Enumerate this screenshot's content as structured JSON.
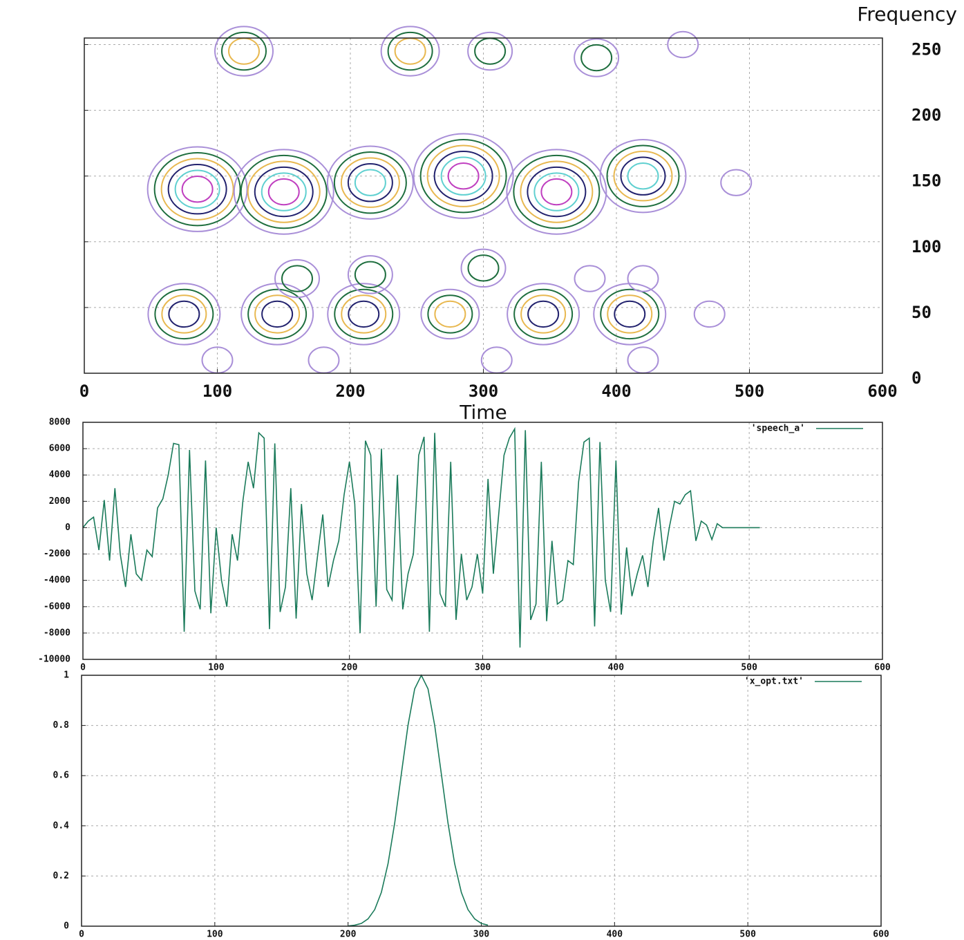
{
  "chart_data": [
    {
      "type": "contour",
      "ylabel": "Frequency",
      "xlabel": "Time",
      "x": [
        85,
        150,
        215,
        285,
        355,
        420,
        75,
        145,
        210,
        275,
        345,
        410,
        120,
        245,
        300,
        215,
        160,
        380,
        420,
        305,
        385,
        450,
        490,
        470,
        100,
        180,
        310,
        420
      ],
      "y": [
        140,
        138,
        145,
        150,
        138,
        150,
        45,
        45,
        45,
        45,
        45,
        45,
        245,
        245,
        80,
        75,
        72,
        72,
        72,
        245,
        240,
        250,
        145,
        45,
        10,
        10,
        10,
        10
      ],
      "values": [
        6,
        6,
        5,
        6,
        6,
        5,
        4,
        4,
        4,
        3,
        4,
        4,
        3,
        3,
        2,
        2,
        2,
        1,
        1,
        2,
        2,
        1,
        1,
        1,
        1,
        1,
        1,
        1
      ],
      "colors": [
        "#a98fd8",
        "#1e6e3e",
        "#e8b850",
        "#22226e",
        "#5fd0d0",
        "#c040c0"
      ],
      "xlim": [
        0,
        600
      ],
      "ylim": [
        0,
        255
      ],
      "xticks": [
        0,
        100,
        200,
        300,
        400,
        500,
        600
      ],
      "yticks": [
        0,
        50,
        100,
        150,
        200,
        250
      ],
      "grid": true
    },
    {
      "type": "line",
      "x": [
        0,
        4,
        8,
        12,
        16,
        20,
        24,
        28,
        32,
        36,
        40,
        44,
        48,
        52,
        56,
        60,
        64,
        68,
        72,
        76,
        80,
        84,
        88,
        92,
        96,
        100,
        104,
        108,
        112,
        116,
        120,
        124,
        128,
        132,
        136,
        140,
        144,
        148,
        152,
        156,
        160,
        164,
        168,
        172,
        176,
        180,
        184,
        188,
        192,
        196,
        200,
        204,
        208,
        212,
        216,
        220,
        224,
        228,
        232,
        236,
        240,
        244,
        248,
        252,
        256,
        260,
        264,
        268,
        272,
        276,
        280,
        284,
        288,
        292,
        296,
        300,
        304,
        308,
        312,
        316,
        320,
        324,
        328,
        332,
        336,
        340,
        344,
        348,
        352,
        356,
        360,
        364,
        368,
        372,
        376,
        380,
        384,
        388,
        392,
        396,
        400,
        404,
        408,
        412,
        416,
        420,
        424,
        428,
        432,
        436,
        440,
        444,
        448,
        452,
        456,
        460,
        464,
        468,
        472,
        476,
        480,
        484,
        488,
        492,
        496,
        500,
        504,
        508
      ],
      "series": [
        {
          "name": "'speech_a'",
          "color": "#1a7a5a",
          "values": [
            0,
            500,
            800,
            -1700,
            2100,
            -2500,
            3000,
            -2000,
            -4500,
            -500,
            -3500,
            -4000,
            -1700,
            -2200,
            1500,
            2200,
            4000,
            6400,
            6300,
            -7900,
            5900,
            -4800,
            -6200,
            5100,
            -6500,
            0,
            -4000,
            -6000,
            -500,
            -2500,
            2000,
            5000,
            3000,
            7200,
            6800,
            -7700,
            6400,
            -6400,
            -4500,
            3000,
            -6900,
            1800,
            -3500,
            -5500,
            -2200,
            1000,
            -4500,
            -2500,
            -1000,
            2500,
            5000,
            1800,
            -8000,
            6600,
            5500,
            -6000,
            6000,
            -4700,
            -5500,
            4000,
            -6200,
            -3500,
            -2000,
            5500,
            6900,
            -7900,
            7200,
            -5000,
            -6000,
            5000,
            -7000,
            -2000,
            -5500,
            -4500,
            -2000,
            -5000,
            3700,
            -3500,
            1000,
            5500,
            6800,
            7500,
            -9100,
            7400,
            -7000,
            -5800,
            5000,
            -7100,
            -1000,
            -5800,
            -5500,
            -2500,
            -2800,
            3500,
            6500,
            6800,
            -7500,
            6500,
            -4000,
            -6400,
            5100,
            -6600,
            -1500,
            -5200,
            -3500,
            -2100,
            -4500,
            -1000,
            1500,
            -2500,
            0,
            2000,
            1800,
            2500,
            2800,
            -1000,
            500,
            200,
            -900,
            300,
            0,
            0,
            0,
            0,
            0,
            0,
            0,
            0
          ]
        }
      ],
      "xlim": [
        0,
        600
      ],
      "ylim": [
        -10000,
        8000
      ],
      "xticks": [
        0,
        100,
        200,
        300,
        400,
        500,
        600
      ],
      "yticks": [
        -10000,
        -8000,
        -6000,
        -4000,
        -2000,
        0,
        2000,
        4000,
        6000,
        8000
      ],
      "grid": true,
      "legend": "top-right"
    },
    {
      "type": "line",
      "x": [
        200,
        205,
        210,
        215,
        220,
        225,
        230,
        235,
        240,
        245,
        250,
        255,
        260,
        265,
        270,
        275,
        280,
        285,
        290,
        295,
        300,
        305
      ],
      "series": [
        {
          "name": "'x_opt.txt'",
          "color": "#1a7a5a",
          "values": [
            0.001,
            0.004,
            0.011,
            0.029,
            0.066,
            0.135,
            0.249,
            0.411,
            0.607,
            0.801,
            0.946,
            1,
            0.946,
            0.801,
            0.607,
            0.411,
            0.249,
            0.135,
            0.066,
            0.029,
            0.011,
            0.004
          ]
        }
      ],
      "xlim": [
        0,
        600
      ],
      "ylim": [
        0,
        1
      ],
      "xticks": [
        0,
        100,
        200,
        300,
        400,
        500,
        600
      ],
      "yticks": [
        0,
        0.2,
        0.4,
        0.6,
        0.8,
        1
      ],
      "grid": true,
      "legend": "top-right"
    }
  ]
}
